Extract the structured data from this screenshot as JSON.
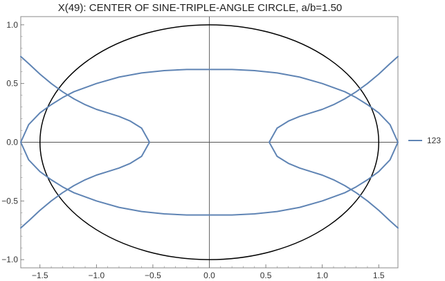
{
  "chart_data": {
    "type": "line",
    "title": "X(49): CENTER OF SINE-TRIPLE-ANGLE CIRCLE, a/b=1.50",
    "xlabel": "",
    "ylabel": "",
    "xlim": [
      -1.67,
      1.67
    ],
    "ylim": [
      -1.07,
      1.07
    ],
    "x_ticks": [
      {
        "value": -1.5,
        "label": "−1.5"
      },
      {
        "value": -1.0,
        "label": "−1.0"
      },
      {
        "value": -0.5,
        "label": "−0.5"
      },
      {
        "value": 0.0,
        "label": "0.0"
      },
      {
        "value": 0.5,
        "label": "0.5"
      },
      {
        "value": 1.0,
        "label": "1.0"
      },
      {
        "value": 1.5,
        "label": "1.5"
      }
    ],
    "y_ticks": [
      {
        "value": -1.0,
        "label": "−1.0"
      },
      {
        "value": -0.5,
        "label": "−0.5"
      },
      {
        "value": 0.0,
        "label": "0.0"
      },
      {
        "value": 0.5,
        "label": "0.5"
      },
      {
        "value": 1.0,
        "label": "1.0"
      }
    ],
    "grid": false,
    "legend_position": "right",
    "ellipse": {
      "a": 1.5,
      "b": 1.0,
      "color": "#000000"
    },
    "series": [
      {
        "name": "123",
        "color": "#5f84b4",
        "paths": [
          [
            [
              -1.67,
              0.73
            ],
            [
              -1.6,
              0.67
            ],
            [
              -1.5,
              0.58
            ],
            [
              -1.4,
              0.5
            ],
            [
              -1.3,
              0.43
            ],
            [
              -1.2,
              0.37
            ],
            [
              -1.1,
              0.32
            ],
            [
              -1.0,
              0.28
            ],
            [
              -0.9,
              0.25
            ],
            [
              -0.8,
              0.22
            ],
            [
              -0.7,
              0.18
            ],
            [
              -0.6,
              0.12
            ],
            [
              -0.53,
              0.0
            ],
            [
              -0.6,
              -0.12
            ],
            [
              -0.7,
              -0.18
            ],
            [
              -0.8,
              -0.22
            ],
            [
              -0.9,
              -0.25
            ],
            [
              -1.0,
              -0.28
            ],
            [
              -1.1,
              -0.32
            ],
            [
              -1.2,
              -0.37
            ],
            [
              -1.3,
              -0.43
            ],
            [
              -1.4,
              -0.5
            ],
            [
              -1.5,
              -0.58
            ],
            [
              -1.6,
              -0.67
            ],
            [
              -1.67,
              -0.73
            ]
          ],
          [
            [
              1.67,
              0.73
            ],
            [
              1.6,
              0.67
            ],
            [
              1.5,
              0.58
            ],
            [
              1.4,
              0.5
            ],
            [
              1.3,
              0.43
            ],
            [
              1.2,
              0.37
            ],
            [
              1.1,
              0.32
            ],
            [
              1.0,
              0.28
            ],
            [
              0.9,
              0.25
            ],
            [
              0.8,
              0.22
            ],
            [
              0.7,
              0.18
            ],
            [
              0.6,
              0.12
            ],
            [
              0.53,
              0.0
            ],
            [
              0.6,
              -0.12
            ],
            [
              0.7,
              -0.18
            ],
            [
              0.8,
              -0.22
            ],
            [
              0.9,
              -0.25
            ],
            [
              1.0,
              -0.28
            ],
            [
              1.1,
              -0.32
            ],
            [
              1.2,
              -0.37
            ],
            [
              1.3,
              -0.43
            ],
            [
              1.4,
              -0.5
            ],
            [
              1.5,
              -0.58
            ],
            [
              1.6,
              -0.67
            ],
            [
              1.67,
              -0.73
            ]
          ],
          [
            [
              -1.67,
              0.0
            ],
            [
              -1.6,
              0.15
            ],
            [
              -1.5,
              0.25
            ],
            [
              -1.4,
              0.32
            ],
            [
              -1.3,
              0.38
            ],
            [
              -1.2,
              0.43
            ],
            [
              -1.0,
              0.5
            ],
            [
              -0.8,
              0.555
            ],
            [
              -0.6,
              0.59
            ],
            [
              -0.4,
              0.61
            ],
            [
              -0.2,
              0.62
            ],
            [
              0.0,
              0.62
            ],
            [
              0.2,
              0.62
            ],
            [
              0.4,
              0.61
            ],
            [
              0.6,
              0.59
            ],
            [
              0.8,
              0.555
            ],
            [
              1.0,
              0.5
            ],
            [
              1.2,
              0.43
            ],
            [
              1.3,
              0.38
            ],
            [
              1.4,
              0.32
            ],
            [
              1.5,
              0.25
            ],
            [
              1.6,
              0.15
            ],
            [
              1.67,
              0.0
            ]
          ],
          [
            [
              -1.67,
              0.0
            ],
            [
              -1.6,
              -0.15
            ],
            [
              -1.5,
              -0.25
            ],
            [
              -1.4,
              -0.32
            ],
            [
              -1.3,
              -0.38
            ],
            [
              -1.2,
              -0.43
            ],
            [
              -1.0,
              -0.5
            ],
            [
              -0.8,
              -0.555
            ],
            [
              -0.6,
              -0.59
            ],
            [
              -0.4,
              -0.61
            ],
            [
              -0.2,
              -0.62
            ],
            [
              0.0,
              -0.62
            ],
            [
              0.2,
              -0.62
            ],
            [
              0.4,
              -0.61
            ],
            [
              0.6,
              -0.59
            ],
            [
              0.8,
              -0.555
            ],
            [
              1.0,
              -0.5
            ],
            [
              1.2,
              -0.43
            ],
            [
              1.3,
              -0.38
            ],
            [
              1.4,
              -0.32
            ],
            [
              1.5,
              -0.25
            ],
            [
              1.6,
              -0.15
            ],
            [
              1.67,
              0.0
            ]
          ]
        ]
      }
    ]
  }
}
